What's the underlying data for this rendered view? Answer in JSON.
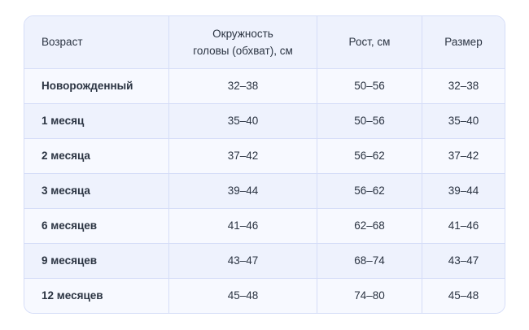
{
  "table": {
    "headers": [
      "Возраст",
      "Окружность\nголовы (обхват), см",
      "Рост, см",
      "Размер"
    ],
    "header_lines": {
      "head_1": "Окружность",
      "head_2": "головы (обхват), см"
    },
    "rows": [
      [
        "Новорожденный",
        "32–38",
        "50–56",
        "32–38"
      ],
      [
        "1 месяц",
        "35–40",
        "50–56",
        "35–40"
      ],
      [
        "2 месяца",
        "37–42",
        "56–62",
        "37–42"
      ],
      [
        "3 месяца",
        "39–44",
        "56–62",
        "39–44"
      ],
      [
        "6 месяцев",
        "41–46",
        "62–68",
        "41–46"
      ],
      [
        "9 месяцев",
        "43–47",
        "68–74",
        "43–47"
      ],
      [
        "12 месяцев",
        "45–48",
        "74–80",
        "45–48"
      ]
    ]
  },
  "colors": {
    "header_bg": "#eef2fd",
    "row_light": "#f7f9ff",
    "row_dark": "#eef2fd",
    "border": "#d5ddf8",
    "text": "#2b3442"
  }
}
